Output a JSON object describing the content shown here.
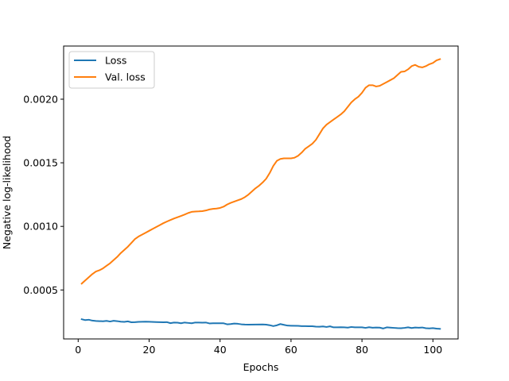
{
  "chart_data": {
    "type": "line",
    "title": "",
    "xlabel": "Epochs",
    "ylabel": "Negative log-likelihood",
    "xlim": [
      -4.1,
      107.1
    ],
    "ylim": [
      0.000115,
      0.002418
    ],
    "xticks": [
      0,
      20,
      40,
      60,
      80,
      100
    ],
    "xtick_labels": [
      "0",
      "20",
      "40",
      "60",
      "80",
      "100"
    ],
    "yticks": [
      0.0005,
      0.001,
      0.0015,
      0.002
    ],
    "ytick_labels": [
      "0.0005",
      "0.0010",
      "0.0015",
      "0.0020"
    ],
    "grid": false,
    "legend_position": "upper-left",
    "series": [
      {
        "name": "Loss",
        "color": "#1f77b4",
        "points": [
          [
            1,
            0.00027
          ],
          [
            2,
            0.000263
          ],
          [
            3,
            0.000266
          ],
          [
            4,
            0.000259
          ],
          [
            5,
            0.000256
          ],
          [
            6,
            0.000255
          ],
          [
            7,
            0.000254
          ],
          [
            8,
            0.000257
          ],
          [
            9,
            0.000252
          ],
          [
            10,
            0.000258
          ],
          [
            11,
            0.000255
          ],
          [
            12,
            0.000251
          ],
          [
            13,
            0.000249
          ],
          [
            14,
            0.000253
          ],
          [
            15,
            0.000246
          ],
          [
            16,
            0.000247
          ],
          [
            17,
            0.000249
          ],
          [
            18,
            0.00025
          ],
          [
            19,
            0.000251
          ],
          [
            20,
            0.00025
          ],
          [
            22,
            0.000248
          ],
          [
            24,
            0.000246
          ],
          [
            25,
            0.000247
          ],
          [
            26,
            0.000239
          ],
          [
            27,
            0.000244
          ],
          [
            28,
            0.000243
          ],
          [
            29,
            0.000238
          ],
          [
            30,
            0.000244
          ],
          [
            31,
            0.000241
          ],
          [
            32,
            0.000238
          ],
          [
            33,
            0.000244
          ],
          [
            34,
            0.000244
          ],
          [
            35,
            0.000243
          ],
          [
            36,
            0.000244
          ],
          [
            37,
            0.000237
          ],
          [
            38,
            0.000238
          ],
          [
            40,
            0.000238
          ],
          [
            41,
            0.000238
          ],
          [
            42,
            0.00023
          ],
          [
            43,
            0.000232
          ],
          [
            44,
            0.000236
          ],
          [
            45,
            0.000234
          ],
          [
            46,
            0.00023
          ],
          [
            47,
            0.000228
          ],
          [
            48,
            0.000227
          ],
          [
            50,
            0.000228
          ],
          [
            52,
            0.000229
          ],
          [
            53,
            0.000227
          ],
          [
            54,
            0.000223
          ],
          [
            55,
            0.000216
          ],
          [
            56,
            0.000222
          ],
          [
            57,
            0.000232
          ],
          [
            58,
            0.000226
          ],
          [
            59,
            0.00022
          ],
          [
            60,
            0.000219
          ],
          [
            62,
            0.000218
          ],
          [
            63,
            0.000216
          ],
          [
            64,
            0.000216
          ],
          [
            65,
            0.000215
          ],
          [
            66,
            0.000215
          ],
          [
            67,
            0.000212
          ],
          [
            68,
            0.000211
          ],
          [
            69,
            0.000213
          ],
          [
            70,
            0.000209
          ],
          [
            71,
            0.000214
          ],
          [
            72,
            0.000206
          ],
          [
            73,
            0.000206
          ],
          [
            74,
            0.000207
          ],
          [
            75,
            0.000206
          ],
          [
            76,
            0.000204
          ],
          [
            77,
            0.000209
          ],
          [
            78,
            0.000206
          ],
          [
            79,
            0.000206
          ],
          [
            80,
            0.000206
          ],
          [
            81,
            0.000202
          ],
          [
            82,
            0.000207
          ],
          [
            83,
            0.000203
          ],
          [
            84,
            0.000205
          ],
          [
            85,
            0.000204
          ],
          [
            86,
            0.000197
          ],
          [
            87,
            0.000206
          ],
          [
            88,
            0.000204
          ],
          [
            89,
            0.000202
          ],
          [
            90,
            0.0002
          ],
          [
            91,
            0.000199
          ],
          [
            92,
            0.000202
          ],
          [
            93,
            0.000206
          ],
          [
            94,
            0.000201
          ],
          [
            95,
            0.000205
          ],
          [
            96,
            0.000203
          ],
          [
            97,
            0.000205
          ],
          [
            98,
            0.000199
          ],
          [
            99,
            0.000198
          ],
          [
            100,
            0.0002
          ],
          [
            101,
            0.000196
          ],
          [
            102,
            0.000194
          ]
        ]
      },
      {
        "name": "Val. loss",
        "color": "#ff7f0e",
        "points": [
          [
            1,
            0.00055
          ],
          [
            2,
            0.000575
          ],
          [
            3,
            0.0006
          ],
          [
            4,
            0.000625
          ],
          [
            5,
            0.000645
          ],
          [
            6,
            0.000655
          ],
          [
            7,
            0.00067
          ],
          [
            8,
            0.00069
          ],
          [
            9,
            0.00071
          ],
          [
            10,
            0.000735
          ],
          [
            11,
            0.00076
          ],
          [
            12,
            0.00079
          ],
          [
            13,
            0.000815
          ],
          [
            14,
            0.00084
          ],
          [
            15,
            0.00087
          ],
          [
            16,
            0.0009
          ],
          [
            17,
            0.00092
          ],
          [
            18,
            0.000935
          ],
          [
            19,
            0.00095
          ],
          [
            20,
            0.000965
          ],
          [
            21,
            0.00098
          ],
          [
            22,
            0.000995
          ],
          [
            23,
            0.00101
          ],
          [
            24,
            0.001025
          ],
          [
            25,
            0.001038
          ],
          [
            26,
            0.00105
          ],
          [
            27,
            0.001062
          ],
          [
            28,
            0.001072
          ],
          [
            29,
            0.001082
          ],
          [
            30,
            0.001093
          ],
          [
            31,
            0.001105
          ],
          [
            32,
            0.001114
          ],
          [
            33,
            0.001117
          ],
          [
            34,
            0.001118
          ],
          [
            35,
            0.00112
          ],
          [
            36,
            0.001125
          ],
          [
            37,
            0.001133
          ],
          [
            38,
            0.001138
          ],
          [
            39,
            0.00114
          ],
          [
            40,
            0.001145
          ],
          [
            41,
            0.001155
          ],
          [
            42,
            0.001172
          ],
          [
            43,
            0.001185
          ],
          [
            44,
            0.001195
          ],
          [
            45,
            0.001205
          ],
          [
            46,
            0.001215
          ],
          [
            47,
            0.00123
          ],
          [
            48,
            0.00125
          ],
          [
            49,
            0.001275
          ],
          [
            50,
            0.0013
          ],
          [
            51,
            0.00132
          ],
          [
            52,
            0.001345
          ],
          [
            53,
            0.001375
          ],
          [
            54,
            0.00142
          ],
          [
            55,
            0.001475
          ],
          [
            56,
            0.001515
          ],
          [
            57,
            0.00153
          ],
          [
            58,
            0.001535
          ],
          [
            59,
            0.001535
          ],
          [
            60,
            0.001535
          ],
          [
            61,
            0.00154
          ],
          [
            62,
            0.001555
          ],
          [
            63,
            0.00158
          ],
          [
            64,
            0.00161
          ],
          [
            65,
            0.00163
          ],
          [
            66,
            0.00165
          ],
          [
            67,
            0.00168
          ],
          [
            68,
            0.001725
          ],
          [
            69,
            0.00177
          ],
          [
            70,
            0.0018
          ],
          [
            71,
            0.00182
          ],
          [
            72,
            0.00184
          ],
          [
            73,
            0.00186
          ],
          [
            74,
            0.00188
          ],
          [
            75,
            0.001905
          ],
          [
            76,
            0.00194
          ],
          [
            77,
            0.001975
          ],
          [
            78,
            0.002
          ],
          [
            79,
            0.00202
          ],
          [
            80,
            0.00205
          ],
          [
            81,
            0.00209
          ],
          [
            82,
            0.00211
          ],
          [
            83,
            0.00211
          ],
          [
            84,
            0.0021
          ],
          [
            85,
            0.002105
          ],
          [
            86,
            0.00212
          ],
          [
            87,
            0.002135
          ],
          [
            88,
            0.00215
          ],
          [
            89,
            0.002165
          ],
          [
            90,
            0.00219
          ],
          [
            91,
            0.002215
          ],
          [
            92,
            0.002218
          ],
          [
            93,
            0.002235
          ],
          [
            94,
            0.00226
          ],
          [
            95,
            0.00227
          ],
          [
            96,
            0.002255
          ],
          [
            97,
            0.00225
          ],
          [
            98,
            0.00226
          ],
          [
            99,
            0.002275
          ],
          [
            100,
            0.002285
          ],
          [
            101,
            0.002305
          ],
          [
            102,
            0.002315
          ]
        ]
      }
    ]
  }
}
